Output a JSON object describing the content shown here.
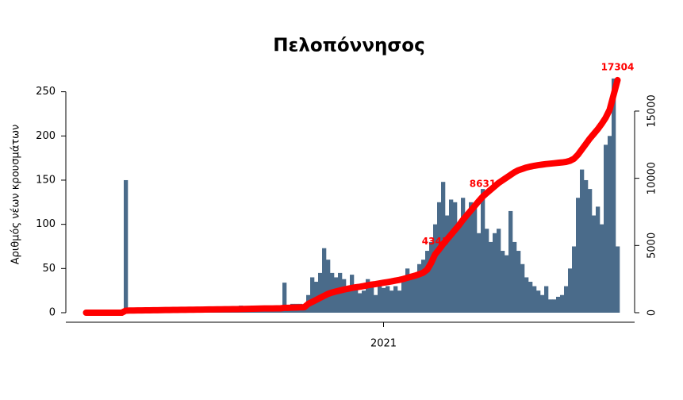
{
  "chart_data": {
    "type": "bar",
    "title": "Πελοπόννησος",
    "y_label": "Αριθμός νέων κρουσμάτων",
    "categories": [
      null,
      null,
      null,
      null,
      null,
      null,
      null,
      null,
      null,
      null,
      null,
      null,
      null,
      null,
      null,
      null,
      null,
      null,
      null,
      null,
      null,
      null,
      null,
      null,
      null,
      null,
      null,
      null,
      null,
      null,
      null,
      null,
      null,
      null,
      null,
      null,
      null,
      null,
      null,
      null,
      null,
      null,
      null,
      null,
      null,
      null,
      null,
      null,
      null,
      null,
      null,
      null,
      null,
      null,
      null,
      null,
      null,
      null,
      null,
      null,
      null,
      null,
      null,
      null,
      null,
      null,
      null,
      null,
      null,
      null,
      null,
      null,
      null,
      null,
      null,
      "2021",
      null,
      null,
      null,
      null,
      null,
      null,
      null,
      null,
      null,
      null,
      null,
      null,
      null,
      null,
      null,
      null,
      null,
      null,
      null,
      null,
      null,
      null,
      null,
      null,
      null,
      null,
      null,
      null,
      null,
      null,
      null,
      null,
      null,
      null,
      null,
      null,
      null,
      null,
      null,
      null,
      null,
      null,
      null,
      null,
      null,
      null,
      null,
      null,
      null,
      null,
      null,
      null,
      null,
      null,
      null,
      null,
      null,
      null,
      null
    ],
    "series": [
      {
        "type": "bar",
        "color": "#4a6b8a",
        "values": [
          0,
          0,
          0,
          0,
          0,
          0,
          0,
          0,
          0,
          0,
          150,
          1,
          1,
          1,
          1,
          1,
          1,
          1,
          1,
          1,
          1,
          1,
          1,
          1,
          1,
          1,
          1,
          1,
          1,
          1,
          1,
          1,
          1,
          1,
          1,
          1,
          1,
          1,
          1,
          8,
          5,
          7,
          8,
          6,
          8,
          3,
          3,
          3,
          3,
          3,
          34,
          5,
          10,
          10,
          10,
          8,
          20,
          40,
          35,
          45,
          73,
          60,
          45,
          40,
          45,
          38,
          30,
          43,
          28,
          22,
          25,
          38,
          30,
          20,
          30,
          28,
          30,
          25,
          30,
          25,
          35,
          50,
          40,
          45,
          55,
          60,
          70,
          80,
          100,
          125,
          148,
          110,
          128,
          125,
          100,
          130,
          110,
          125,
          120,
          90,
          140,
          95,
          80,
          90,
          95,
          70,
          65,
          115,
          80,
          70,
          55,
          40,
          35,
          30,
          25,
          20,
          30,
          15,
          15,
          18,
          20,
          30,
          50,
          75,
          130,
          162,
          150,
          140,
          110,
          120,
          100,
          190,
          200,
          265,
          75
        ]
      },
      {
        "type": "line",
        "axis": "y2",
        "color": "#ff0000",
        "values": [
          0,
          0,
          0,
          0,
          0,
          0,
          0,
          0,
          0,
          0,
          150,
          160,
          164,
          168,
          172,
          176,
          180,
          184,
          188,
          192,
          196,
          200,
          204,
          208,
          212,
          216,
          220,
          224,
          228,
          232,
          236,
          240,
          244,
          248,
          252,
          256,
          260,
          264,
          268,
          276,
          282,
          289,
          297,
          303,
          311,
          314,
          317,
          320,
          323,
          326,
          360,
          365,
          375,
          385,
          395,
          403,
          650,
          800,
          950,
          1100,
          1250,
          1400,
          1500,
          1580,
          1650,
          1720,
          1780,
          1840,
          1890,
          1930,
          1980,
          2040,
          2090,
          2130,
          2180,
          2230,
          2280,
          2330,
          2390,
          2440,
          2510,
          2600,
          2680,
          2760,
          2860,
          2980,
          3200,
          3700,
          4341,
          4700,
          5100,
          5450,
          5800,
          6150,
          6500,
          6900,
          7250,
          7600,
          7950,
          8300,
          8631,
          8900,
          9150,
          9400,
          9650,
          9850,
          10050,
          10250,
          10450,
          10600,
          10700,
          10800,
          10870,
          10930,
          10980,
          11020,
          11060,
          11090,
          11120,
          11150,
          11180,
          11220,
          11300,
          11450,
          11750,
          12150,
          12550,
          12950,
          13300,
          13650,
          14050,
          14500,
          15100,
          16200,
          17304
        ],
        "value_labels": [
          null,
          null,
          null,
          null,
          null,
          null,
          null,
          null,
          null,
          null,
          null,
          null,
          null,
          null,
          null,
          null,
          null,
          null,
          null,
          null,
          null,
          null,
          null,
          null,
          null,
          null,
          null,
          null,
          null,
          null,
          null,
          null,
          null,
          null,
          null,
          null,
          null,
          null,
          null,
          null,
          null,
          null,
          null,
          null,
          null,
          null,
          null,
          null,
          null,
          null,
          null,
          null,
          null,
          null,
          null,
          null,
          null,
          null,
          null,
          null,
          null,
          null,
          null,
          null,
          null,
          null,
          null,
          null,
          null,
          null,
          null,
          null,
          null,
          null,
          null,
          null,
          null,
          null,
          null,
          null,
          null,
          null,
          null,
          null,
          null,
          null,
          null,
          null,
          "4341",
          null,
          null,
          null,
          null,
          null,
          null,
          null,
          null,
          null,
          null,
          null,
          "8631",
          null,
          null,
          null,
          null,
          null,
          null,
          null,
          null,
          null,
          null,
          null,
          null,
          null,
          null,
          null,
          null,
          null,
          null,
          null,
          null,
          null,
          null,
          null,
          null,
          null,
          null,
          null,
          null,
          null,
          null,
          null,
          null,
          null,
          "17304"
        ]
      }
    ],
    "ylim": [
      0,
      273
    ],
    "yticks": [
      0,
      50,
      100,
      150,
      200,
      250
    ],
    "y2lim": [
      0,
      17950
    ],
    "y2ticks": [
      0,
      5000,
      10000,
      15000
    ]
  }
}
